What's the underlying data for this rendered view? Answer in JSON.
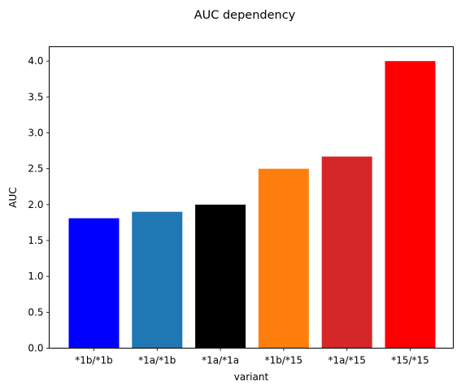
{
  "chart_data": {
    "type": "bar",
    "title": "AUC dependency",
    "xlabel": "variant",
    "ylabel": "AUC",
    "categories": [
      "*1b/*1b",
      "*1a/*1b",
      "*1a/*1a",
      "*1b/*15",
      "*1a/*15",
      "*15/*15"
    ],
    "values": [
      1.81,
      1.9,
      2.0,
      2.5,
      2.67,
      4.0
    ],
    "colors": [
      "#0000ff",
      "#1f77b4",
      "#000000",
      "#ff7f0e",
      "#d62728",
      "#ff0000"
    ],
    "yticks": [
      "0.0",
      "0.5",
      "1.0",
      "1.5",
      "2.0",
      "2.5",
      "3.0",
      "3.5",
      "4.0"
    ],
    "ylim": [
      0,
      4.2
    ],
    "grid": false,
    "legend": "none"
  }
}
